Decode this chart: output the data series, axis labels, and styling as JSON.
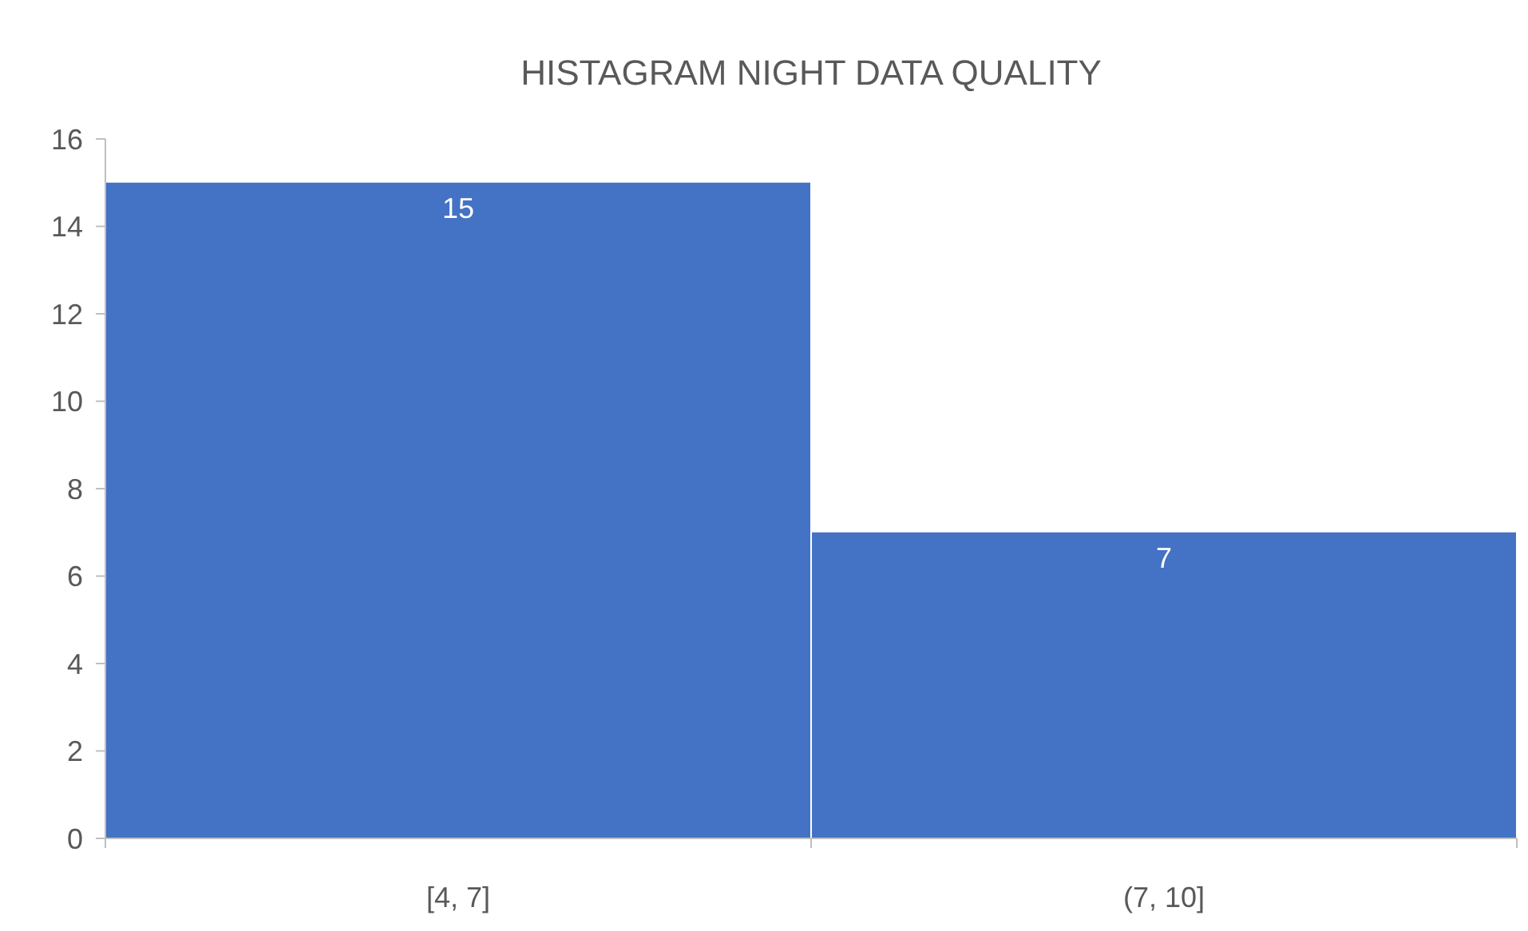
{
  "chart_data": {
    "type": "bar",
    "title": "HISTAGRAM NIGHT DATA QUALITY",
    "categories": [
      "[4, 7]",
      "(7, 10]"
    ],
    "values": [
      15,
      7
    ],
    "color": "#4472c4",
    "ylim": [
      0,
      16
    ],
    "yticks": [
      0,
      2,
      4,
      6,
      8,
      10,
      12,
      14,
      16
    ],
    "grid": false,
    "data_labels": true
  }
}
